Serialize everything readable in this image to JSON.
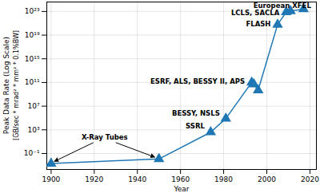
{
  "chart_data": {
    "type": "line",
    "xlabel": "Year",
    "ylabel": [
      "Peak Data Rate (Log Scale)",
      "[GB/sec * mrad² * mm² * 0.1%BW]"
    ],
    "x": [
      1900,
      1950,
      1974,
      1981,
      1993,
      1994,
      1996,
      2005,
      2009,
      2011,
      2017
    ],
    "values": [
      0.002,
      0.012,
      400,
      80000,
      100000000000.0,
      50000000000.0,
      5000000000.0,
      6e+20,
      8e+22,
      1.2e+23,
      2.5e+23
    ],
    "color": "#1f77b4",
    "marker": "triangle",
    "log": "y",
    "grid": true,
    "xlim": [
      1898,
      2023
    ],
    "xticks": [
      1900,
      1920,
      1940,
      1960,
      1980,
      2000,
      2020
    ],
    "ylim": [
      0.0002,
      4e+24
    ],
    "yticks": [
      {
        "value": 0.1,
        "label": "10⁻¹"
      },
      {
        "value": 1000,
        "label": "10³"
      },
      {
        "value": 10000000.0,
        "label": "10⁷"
      },
      {
        "value": 100000000000.0,
        "label": "10¹¹"
      },
      {
        "value": 1000000000000000.0,
        "label": "10¹⁵"
      },
      {
        "value": 1e+19,
        "label": "10¹⁹"
      },
      {
        "value": 1e+23,
        "label": "10²³"
      }
    ],
    "annotations": [
      {
        "text": "X-Ray Tubes",
        "x": [
          1900,
          1950
        ]
      },
      {
        "text": "SSRL",
        "x": [
          1974
        ]
      },
      {
        "text": "BESSY, NSLS",
        "x": [
          1981
        ]
      },
      {
        "text": "ESRF, ALS, BESSY II, APS",
        "x": [
          1993
        ]
      },
      {
        "text": "FLASH",
        "x": [
          2005
        ]
      },
      {
        "text": "LCLS, SACLA",
        "x": [
          2009
        ]
      },
      {
        "text": "European XFEL",
        "x": [
          2017
        ]
      }
    ]
  }
}
